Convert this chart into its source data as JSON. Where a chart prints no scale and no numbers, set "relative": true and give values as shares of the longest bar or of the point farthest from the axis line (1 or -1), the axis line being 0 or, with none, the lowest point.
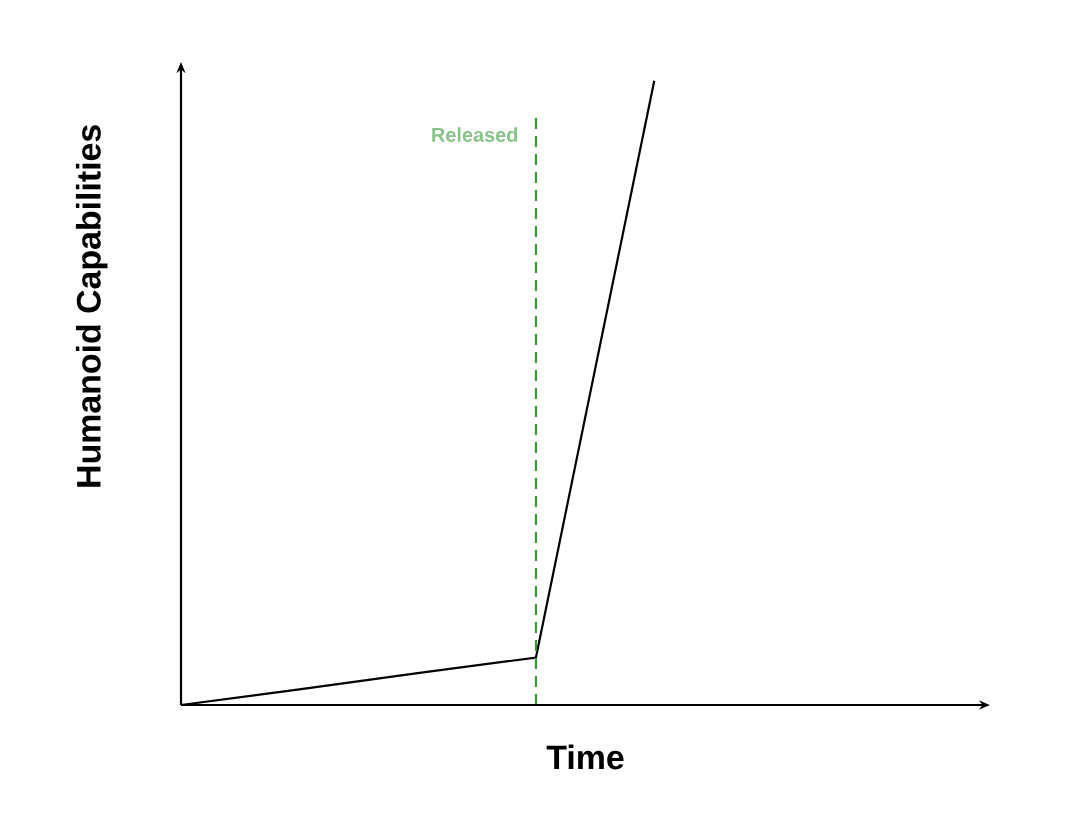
{
  "chart_data": {
    "type": "line",
    "xlabel": "Time",
    "ylabel": "Humanoid Capabilities",
    "relative": true,
    "marker": "none",
    "line_style": "solid",
    "categories": [
      null,
      null,
      null,
      null,
      null
    ],
    "series": [
      {
        "color": "#000000",
        "values": [
          0,
          0.025,
          0.051,
          0.076,
          1
        ]
      }
    ],
    "annotations": [
      "Released"
    ]
  }
}
